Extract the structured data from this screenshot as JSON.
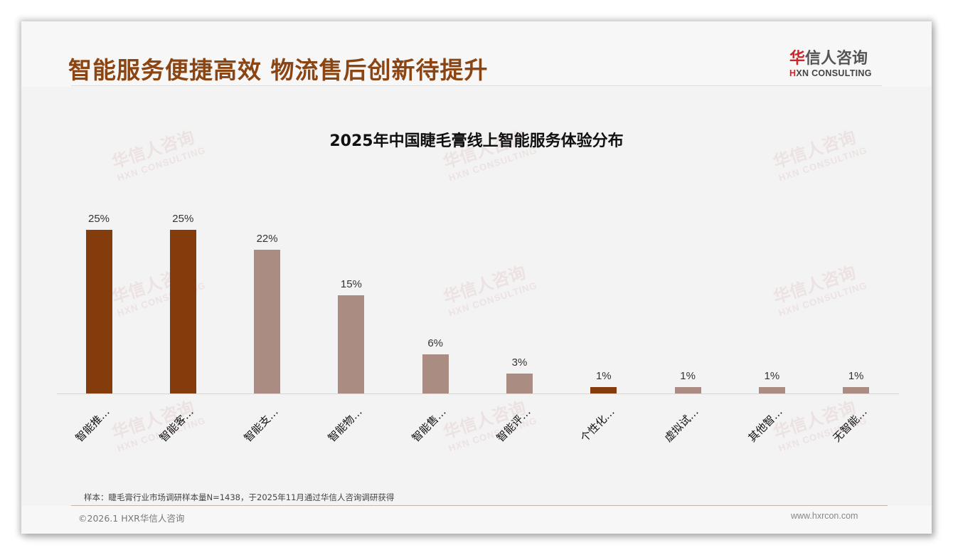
{
  "header": {
    "title": "智能服务便捷高效 物流售后创新待提升",
    "logo": {
      "cn_first": "华",
      "cn_rest": "信人咨询",
      "en_first": "H",
      "en_rest": "XN CONSULTING"
    }
  },
  "watermark": {
    "cn": "华信人咨询",
    "en": "HXN CONSULTING"
  },
  "colors": {
    "title": "#8b4513",
    "highlight_bar": "#843c0c",
    "normal_bar": "#ab8c82",
    "background": "#f3f3f3",
    "logo_red": "#d0232a"
  },
  "chart_data": {
    "type": "bar",
    "title": "2025年中国睫毛膏线上智能服务体验分布",
    "xlabel": "",
    "ylabel": "",
    "ylim": [
      0,
      25
    ],
    "grid": false,
    "legend": null,
    "categories": [
      "智能推…",
      "智能客…",
      "智能支…",
      "智能物…",
      "智能售…",
      "智能评…",
      "个性化…",
      "虚拟试…",
      "其他智…",
      "无智能…"
    ],
    "values": [
      25,
      25,
      22,
      15,
      6,
      3,
      1,
      1,
      1,
      1
    ],
    "value_labels": [
      "25%",
      "25%",
      "22%",
      "15%",
      "6%",
      "3%",
      "1%",
      "1%",
      "1%",
      "1%"
    ],
    "highlighted": [
      true,
      true,
      false,
      false,
      false,
      false,
      true,
      false,
      false,
      false
    ],
    "unit": "%"
  },
  "footer": {
    "note": "样本：睫毛膏行业市场调研样本量N=1438，于2025年11月通过华信人咨询调研获得",
    "copyright": "©2026.1 HXR华信人咨询",
    "website": "www.hxrcon.com"
  }
}
